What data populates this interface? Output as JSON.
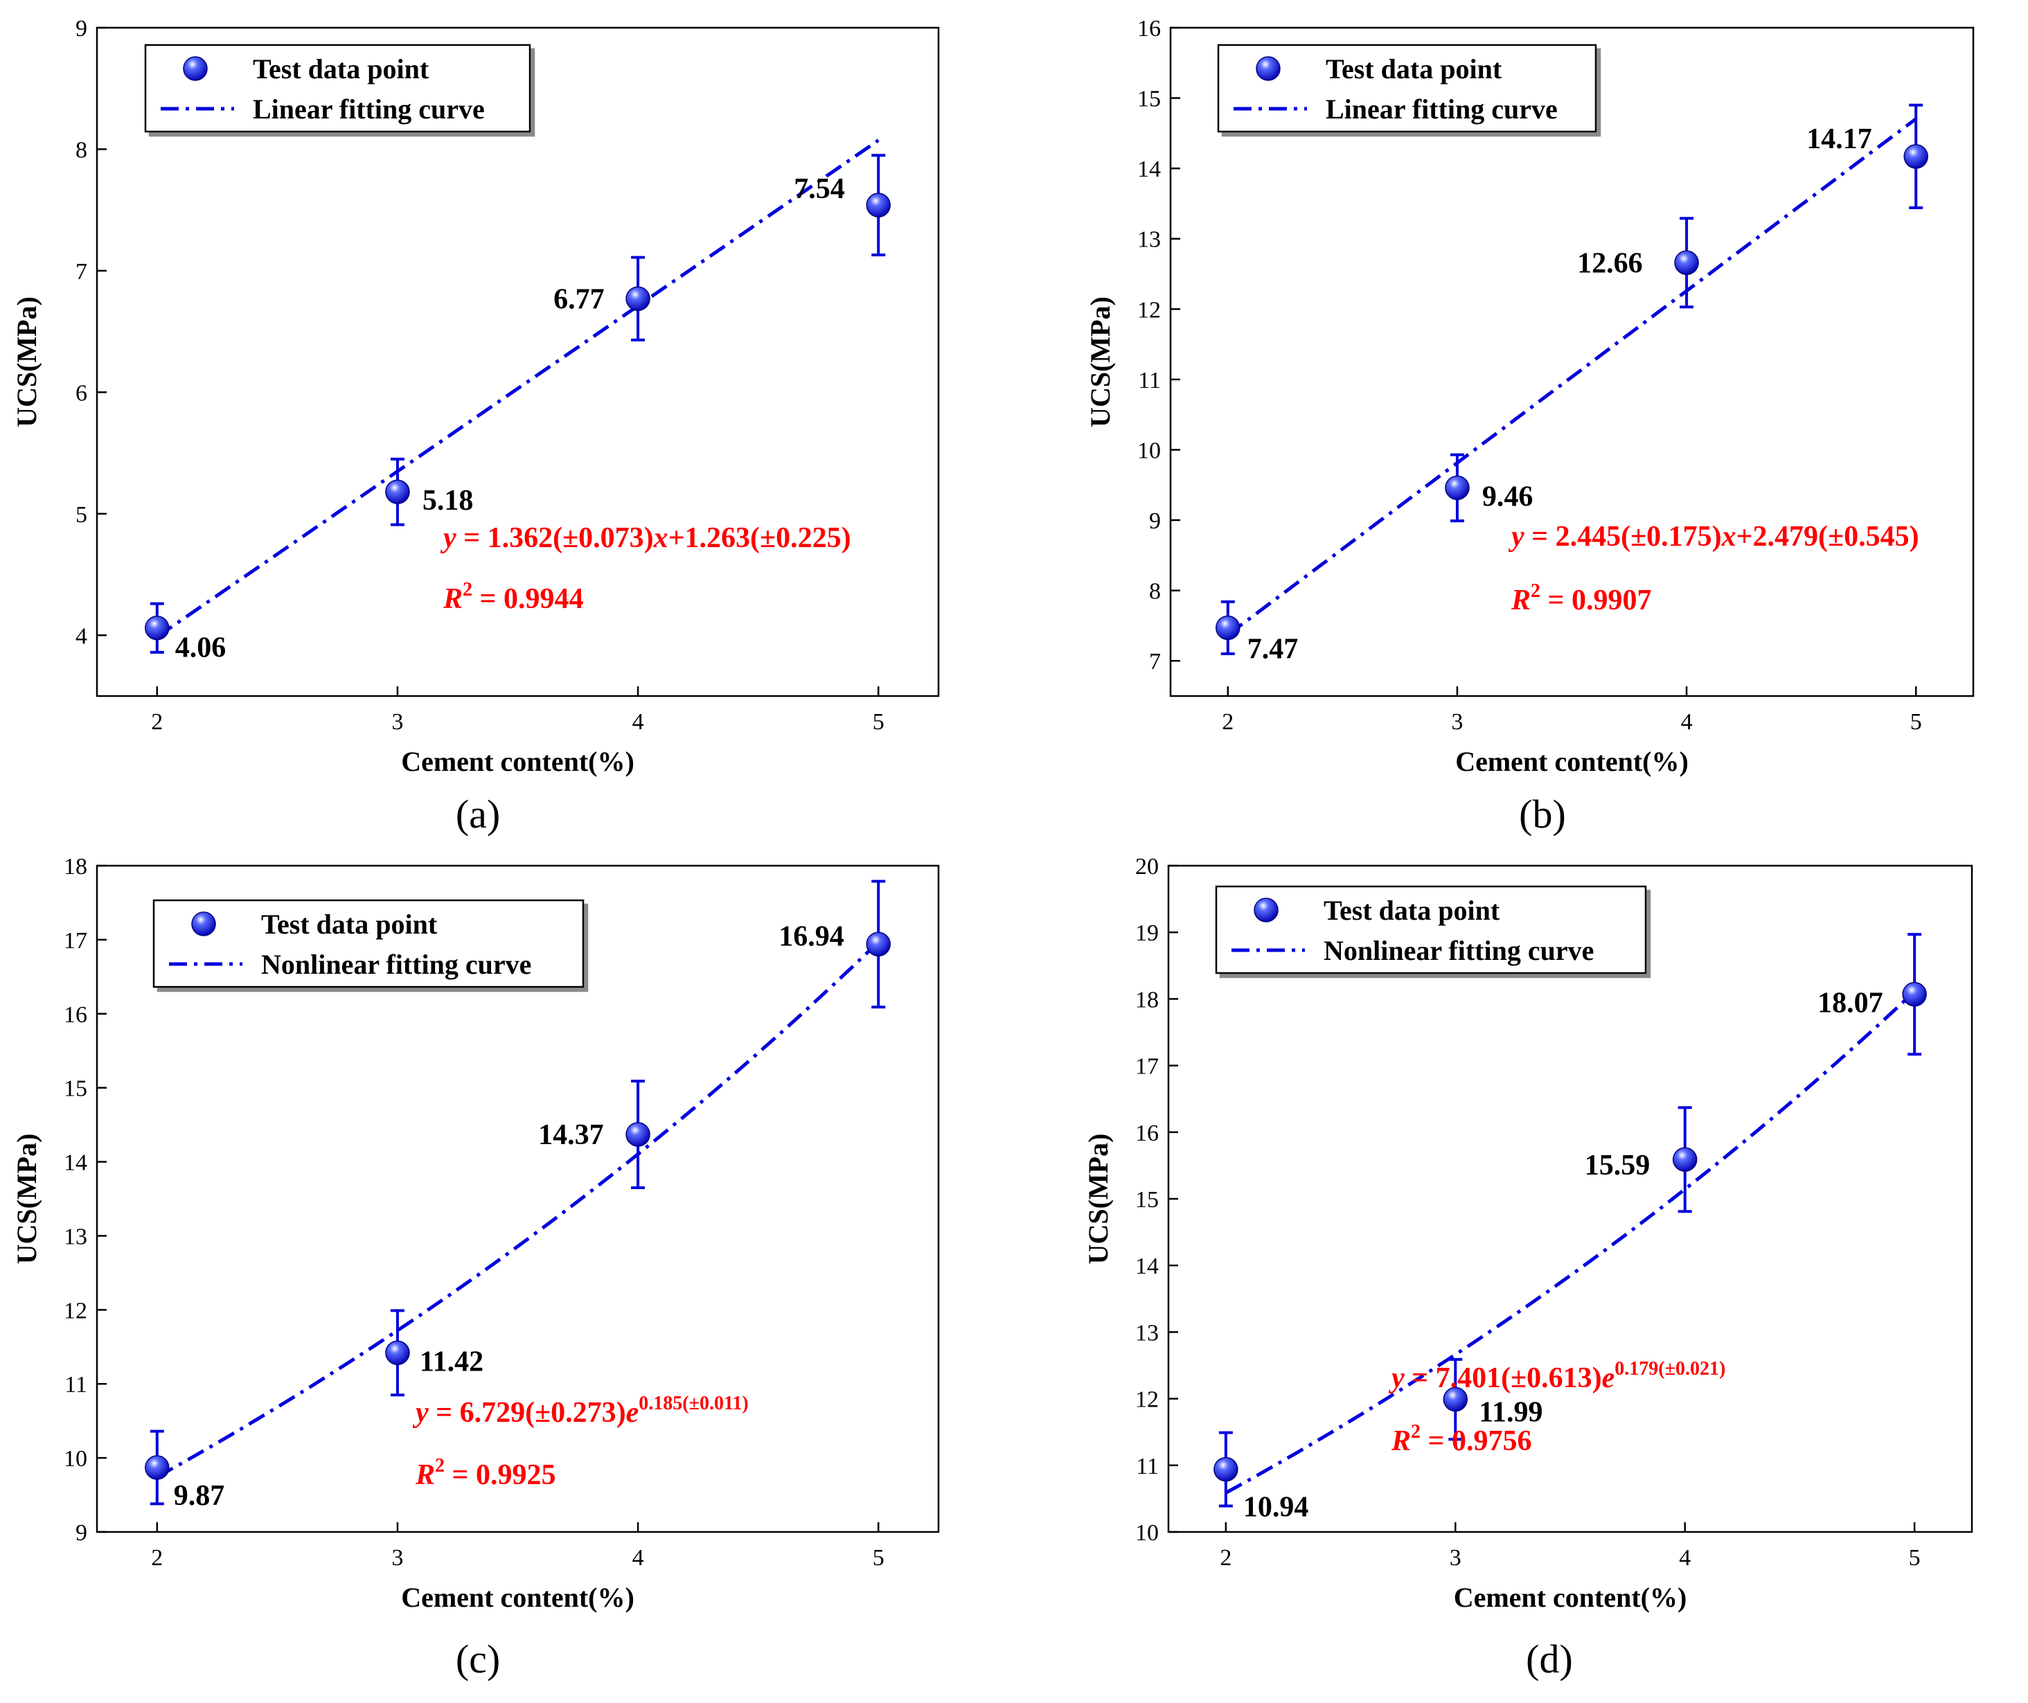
{
  "chart_data": [
    {
      "type": "scatter",
      "panel_label": "(a)",
      "xlabel": "Cement content(%)",
      "ylabel": "UCS(MPa)",
      "xlim": [
        1.75,
        5.25
      ],
      "ylim": [
        3.5,
        9
      ],
      "xticks": [
        2,
        3,
        4,
        5
      ],
      "yticks": [
        4,
        5,
        6,
        7,
        8,
        9
      ],
      "legend": {
        "position": "top-left",
        "items": [
          "Test data point",
          "Linear fitting curve"
        ]
      },
      "points": {
        "x": [
          2,
          3,
          4,
          5
        ],
        "y": [
          4.06,
          5.18,
          6.77,
          7.54
        ],
        "err": [
          0.2,
          0.27,
          0.34,
          0.41
        ]
      },
      "labels": [
        "4.06",
        "5.18",
        "6.77",
        "7.54"
      ],
      "fit": {
        "kind": "linear",
        "a": 1.362,
        "b": 1.263,
        "x_range": [
          2,
          5
        ]
      },
      "equation": {
        "prefix": "y = 1.362(±0.073)",
        "var": "x",
        "suffix": "+1.263(±0.225)",
        "r2_value": "= 0.9944"
      }
    },
    {
      "type": "scatter",
      "panel_label": "(b)",
      "xlabel": "Cement content(%)",
      "ylabel": "UCS(MPa)",
      "xlim": [
        1.75,
        5.25
      ],
      "ylim": [
        6.5,
        16
      ],
      "xticks": [
        2,
        3,
        4,
        5
      ],
      "yticks": [
        7,
        8,
        9,
        10,
        11,
        12,
        13,
        14,
        15,
        16
      ],
      "legend": {
        "position": "top-left",
        "items": [
          "Test data point",
          "Linear fitting curve"
        ]
      },
      "points": {
        "x": [
          2,
          3,
          4,
          5
        ],
        "y": [
          7.47,
          9.46,
          12.66,
          14.17
        ],
        "err": [
          0.37,
          0.47,
          0.63,
          0.73
        ]
      },
      "labels": [
        "7.47",
        "9.46",
        "12.66",
        "14.17"
      ],
      "fit": {
        "kind": "linear",
        "a": 2.445,
        "b": 2.479,
        "x_range": [
          2,
          5
        ]
      },
      "equation": {
        "prefix": "y = 2.445(±0.175)",
        "var": "x",
        "suffix": "+2.479(±0.545)",
        "r2_value": "= 0.9907"
      }
    },
    {
      "type": "scatter",
      "panel_label": "(c)",
      "xlabel": "Cement content(%)",
      "ylabel": "UCS(MPa)",
      "xlim": [
        1.75,
        5.25
      ],
      "ylim": [
        9,
        18
      ],
      "xticks": [
        2,
        3,
        4,
        5
      ],
      "yticks": [
        9,
        10,
        11,
        12,
        13,
        14,
        15,
        16,
        17,
        18
      ],
      "legend": {
        "position": "top-left",
        "items": [
          "Test data point",
          "Nonlinear fitting curve"
        ]
      },
      "points": {
        "x": [
          2,
          3,
          4,
          5
        ],
        "y": [
          9.87,
          11.42,
          14.37,
          16.94
        ],
        "err": [
          0.49,
          0.57,
          0.72,
          0.85
        ]
      },
      "labels": [
        "9.87",
        "11.42",
        "14.37",
        "16.94"
      ],
      "fit": {
        "kind": "exponential",
        "a": 6.729,
        "b": 0.185,
        "x_range": [
          2,
          5
        ]
      },
      "equation": {
        "prefix": "y = 6.729(±0.273)",
        "var": "e",
        "sup": "0.185(±0.011)",
        "r2_value": "= 0.9925"
      }
    },
    {
      "type": "scatter",
      "panel_label": "(d)",
      "xlabel": "Cement content(%)",
      "ylabel": "UCS(MPa)",
      "xlim": [
        1.75,
        5.25
      ],
      "ylim": [
        10,
        20
      ],
      "xticks": [
        2,
        3,
        4,
        5
      ],
      "yticks": [
        10,
        11,
        12,
        13,
        14,
        15,
        16,
        17,
        18,
        19,
        20
      ],
      "legend": {
        "position": "top-left",
        "items": [
          "Test data point",
          "Nonlinear fitting curve"
        ]
      },
      "points": {
        "x": [
          2,
          3,
          4,
          5
        ],
        "y": [
          10.94,
          11.99,
          15.59,
          18.07
        ],
        "err": [
          0.55,
          0.6,
          0.78,
          0.9
        ]
      },
      "labels": [
        "10.94",
        "11.99",
        "15.59",
        "18.07"
      ],
      "fit": {
        "kind": "exponential",
        "a": 7.401,
        "b": 0.179,
        "x_range": [
          2,
          5
        ]
      },
      "equation": {
        "prefix": "y = 7.401(±0.613)",
        "var": "e",
        "sup": "0.179(±0.021)",
        "r2_value": "= 0.9756"
      }
    }
  ],
  "colors": {
    "series": "#0000dd",
    "equation": "#ff0000",
    "axis": "#000000"
  }
}
